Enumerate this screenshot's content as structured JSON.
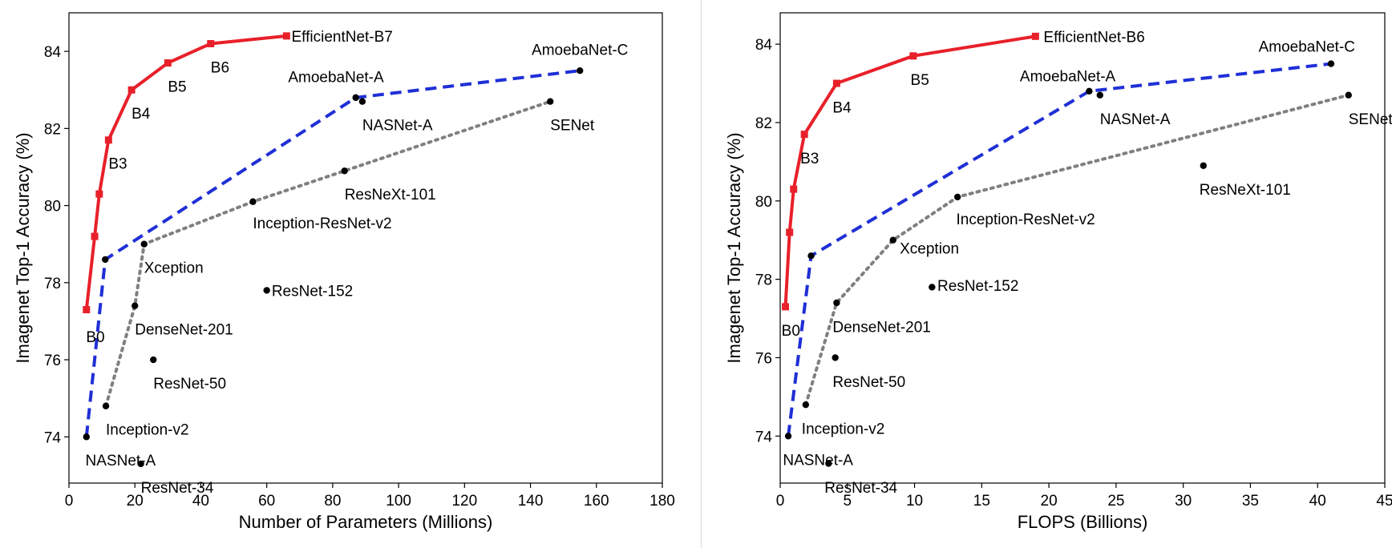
{
  "chart_data": [
    {
      "type": "scatter",
      "xlabel": "Number of Parameters (Millions)",
      "ylabel": "Imagenet Top-1 Accuracy (%)",
      "xlim": [
        0,
        180
      ],
      "ylim": [
        72.8,
        85.0
      ],
      "xticks": [
        0,
        20,
        40,
        60,
        80,
        100,
        120,
        140,
        160,
        180
      ],
      "yticks": [
        74,
        76,
        78,
        80,
        82,
        84
      ],
      "grid": false,
      "lines": [
        {
          "style": "solid",
          "color": "#e8202a",
          "marker": "square",
          "points": [
            [
              5.3,
              77.3
            ],
            [
              7.8,
              79.2
            ],
            [
              9.2,
              80.3
            ],
            [
              12,
              81.7
            ],
            [
              19,
              83.0
            ],
            [
              30,
              83.7
            ],
            [
              43,
              84.2
            ],
            [
              66,
              84.4
            ]
          ]
        },
        {
          "style": "dashed",
          "color": "#1f2fd6",
          "points": [
            [
              5.3,
              74.0
            ],
            [
              11,
              78.6
            ],
            [
              87,
              82.8
            ],
            [
              155,
              83.5
            ]
          ]
        },
        {
          "style": "dotted",
          "color": "#808080",
          "points": [
            [
              11.2,
              74.8
            ],
            [
              20,
              77.4
            ],
            [
              22.8,
              79.0
            ],
            [
              55.8,
              80.1
            ],
            [
              83.6,
              80.9
            ],
            [
              146,
              82.7
            ]
          ]
        }
      ],
      "markers": [
        {
          "x": 5.3,
          "y": 77.3,
          "shape": "square",
          "color": "#e8202a",
          "label": "B0",
          "lx": 5.2,
          "ly": 76.6,
          "anchor": "start"
        },
        {
          "x": 7.8,
          "y": 79.2,
          "shape": "square",
          "color": "#e8202a"
        },
        {
          "x": 9.2,
          "y": 80.3,
          "shape": "square",
          "color": "#e8202a"
        },
        {
          "x": 12,
          "y": 81.7,
          "shape": "square",
          "color": "#e8202a",
          "label": "B3",
          "lx": 12,
          "ly": 81.1,
          "anchor": "start"
        },
        {
          "x": 19,
          "y": 83.0,
          "shape": "square",
          "color": "#e8202a",
          "label": "B4",
          "lx": 19,
          "ly": 82.4,
          "anchor": "start"
        },
        {
          "x": 30,
          "y": 83.7,
          "shape": "square",
          "color": "#e8202a",
          "label": "B5",
          "lx": 30,
          "ly": 83.1,
          "anchor": "start"
        },
        {
          "x": 43,
          "y": 84.2,
          "shape": "square",
          "color": "#e8202a",
          "label": "B6",
          "lx": 43,
          "ly": 83.6,
          "anchor": "start"
        },
        {
          "x": 66,
          "y": 84.4,
          "shape": "square",
          "color": "#e8202a",
          "label": "EfficientNet-B7",
          "lx": 67.5,
          "ly": 84.4,
          "anchor": "start"
        },
        {
          "x": 5.3,
          "y": 74.0,
          "shape": "dot",
          "color": "#000000",
          "label": "NASNet-A",
          "lx": 5,
          "ly": 73.4,
          "anchor": "start"
        },
        {
          "x": 11,
          "y": 78.6,
          "shape": "dot",
          "color": "#000000"
        },
        {
          "x": 87,
          "y": 82.8,
          "shape": "dot",
          "color": "#000000",
          "label": "AmoebaNet-A",
          "lx": 81,
          "ly": 83.35,
          "anchor": "middle"
        },
        {
          "x": 89,
          "y": 82.7,
          "shape": "dot",
          "color": "#000000",
          "label": "NASNet-A",
          "lx": 89,
          "ly": 82.1,
          "anchor": "start"
        },
        {
          "x": 155,
          "y": 83.5,
          "shape": "dot",
          "color": "#000000",
          "label": "AmoebaNet-C",
          "lx": 155,
          "ly": 84.05,
          "anchor": "middle"
        },
        {
          "x": 146,
          "y": 82.7,
          "shape": "dot",
          "color": "#000000",
          "label": "SENet",
          "lx": 146,
          "ly": 82.1,
          "anchor": "start"
        },
        {
          "x": 83.6,
          "y": 80.9,
          "shape": "dot",
          "color": "#000000",
          "label": "ResNeXt-101",
          "lx": 83.6,
          "ly": 80.3,
          "anchor": "start"
        },
        {
          "x": 55.8,
          "y": 80.1,
          "shape": "dot",
          "color": "#000000",
          "label": "Inception-ResNet-v2",
          "lx": 55.8,
          "ly": 79.55,
          "anchor": "start"
        },
        {
          "x": 22.8,
          "y": 79.0,
          "shape": "dot",
          "color": "#000000",
          "label": "Xception",
          "lx": 22.8,
          "ly": 78.4,
          "anchor": "start"
        },
        {
          "x": 20,
          "y": 77.4,
          "shape": "dot",
          "color": "#000000",
          "label": "DenseNet-201",
          "lx": 20,
          "ly": 76.8,
          "anchor": "start"
        },
        {
          "x": 60,
          "y": 77.8,
          "shape": "dot",
          "color": "#000000",
          "label": "ResNet-152",
          "lx": 61.5,
          "ly": 77.8,
          "anchor": "start"
        },
        {
          "x": 25.6,
          "y": 76.0,
          "shape": "dot",
          "color": "#000000",
          "label": "ResNet-50",
          "lx": 25.6,
          "ly": 75.4,
          "anchor": "start"
        },
        {
          "x": 11.2,
          "y": 74.8,
          "shape": "dot",
          "color": "#000000",
          "label": "Inception-v2",
          "lx": 11.2,
          "ly": 74.2,
          "anchor": "start"
        },
        {
          "x": 21.8,
          "y": 73.3,
          "shape": "dot",
          "color": "#000000",
          "label": "ResNet-34",
          "lx": 21.8,
          "ly": 72.7,
          "anchor": "start"
        }
      ]
    },
    {
      "type": "scatter",
      "xlabel": "FLOPS (Billions)",
      "ylabel": "Imagenet Top-1 Accuracy (%)",
      "xlim": [
        0,
        45
      ],
      "ylim": [
        72.8,
        84.8
      ],
      "xticks": [
        0,
        5,
        10,
        15,
        20,
        25,
        30,
        35,
        40,
        45
      ],
      "yticks": [
        74,
        76,
        78,
        80,
        82,
        84
      ],
      "grid": false,
      "lines": [
        {
          "style": "solid",
          "color": "#e8202a",
          "marker": "square",
          "points": [
            [
              0.39,
              77.3
            ],
            [
              0.7,
              79.2
            ],
            [
              1.0,
              80.3
            ],
            [
              1.8,
              81.7
            ],
            [
              4.2,
              83.0
            ],
            [
              9.9,
              83.7
            ],
            [
              19,
              84.2
            ]
          ]
        },
        {
          "style": "dashed",
          "color": "#1f2fd6",
          "points": [
            [
              0.6,
              74.0
            ],
            [
              2.3,
              78.6
            ],
            [
              23,
              82.8
            ],
            [
              41,
              83.5
            ]
          ]
        },
        {
          "style": "dotted",
          "color": "#808080",
          "points": [
            [
              1.9,
              74.8
            ],
            [
              4.2,
              77.4
            ],
            [
              8.4,
              79.0
            ],
            [
              13.2,
              80.1
            ],
            [
              42.3,
              82.7
            ]
          ]
        }
      ],
      "markers": [
        {
          "x": 0.39,
          "y": 77.3,
          "shape": "square",
          "color": "#e8202a",
          "label": "B0",
          "lx": 0.1,
          "ly": 76.7,
          "anchor": "start"
        },
        {
          "x": 0.7,
          "y": 79.2,
          "shape": "square",
          "color": "#e8202a"
        },
        {
          "x": 1.0,
          "y": 80.3,
          "shape": "square",
          "color": "#e8202a"
        },
        {
          "x": 1.8,
          "y": 81.7,
          "shape": "square",
          "color": "#e8202a",
          "label": "B3",
          "lx": 1.5,
          "ly": 81.1,
          "anchor": "start"
        },
        {
          "x": 4.2,
          "y": 83.0,
          "shape": "square",
          "color": "#e8202a",
          "label": "B4",
          "lx": 3.9,
          "ly": 82.4,
          "anchor": "start"
        },
        {
          "x": 9.9,
          "y": 83.7,
          "shape": "square",
          "color": "#e8202a",
          "label": "B5",
          "lx": 9.7,
          "ly": 83.1,
          "anchor": "start"
        },
        {
          "x": 19,
          "y": 84.2,
          "shape": "square",
          "color": "#e8202a",
          "label": "EfficientNet-B6",
          "lx": 19.6,
          "ly": 84.2,
          "anchor": "start"
        },
        {
          "x": 0.6,
          "y": 74.0,
          "shape": "dot",
          "color": "#000000",
          "label": "NASNet-A",
          "lx": 0.2,
          "ly": 73.4,
          "anchor": "start"
        },
        {
          "x": 2.3,
          "y": 78.6,
          "shape": "dot",
          "color": "#000000"
        },
        {
          "x": 23,
          "y": 82.8,
          "shape": "dot",
          "color": "#000000",
          "label": "AmoebaNet-A",
          "lx": 21.4,
          "ly": 83.2,
          "anchor": "middle"
        },
        {
          "x": 23.8,
          "y": 82.7,
          "shape": "dot",
          "color": "#000000",
          "label": "NASNet-A",
          "lx": 23.8,
          "ly": 82.1,
          "anchor": "start"
        },
        {
          "x": 41,
          "y": 83.5,
          "shape": "dot",
          "color": "#000000",
          "label": "AmoebaNet-C",
          "lx": 39.2,
          "ly": 83.95,
          "anchor": "middle"
        },
        {
          "x": 42.3,
          "y": 82.7,
          "shape": "dot",
          "color": "#000000",
          "label": "SENet",
          "lx": 42.3,
          "ly": 82.1,
          "anchor": "start"
        },
        {
          "x": 31.5,
          "y": 80.9,
          "shape": "dot",
          "color": "#000000",
          "label": "ResNeXt-101",
          "lx": 31.2,
          "ly": 80.3,
          "anchor": "start"
        },
        {
          "x": 13.2,
          "y": 80.1,
          "shape": "dot",
          "color": "#000000",
          "label": "Inception-ResNet-v2",
          "lx": 13.1,
          "ly": 79.55,
          "anchor": "start"
        },
        {
          "x": 8.4,
          "y": 79.0,
          "shape": "dot",
          "color": "#000000",
          "label": "Xception",
          "lx": 8.9,
          "ly": 78.8,
          "anchor": "start"
        },
        {
          "x": 4.2,
          "y": 77.4,
          "shape": "dot",
          "color": "#000000",
          "label": "DenseNet-201",
          "lx": 3.9,
          "ly": 76.8,
          "anchor": "start"
        },
        {
          "x": 11.3,
          "y": 77.8,
          "shape": "dot",
          "color": "#000000",
          "label": "ResNet-152",
          "lx": 11.7,
          "ly": 77.85,
          "anchor": "start"
        },
        {
          "x": 4.1,
          "y": 76.0,
          "shape": "dot",
          "color": "#000000",
          "label": "ResNet-50",
          "lx": 3.9,
          "ly": 75.4,
          "anchor": "start"
        },
        {
          "x": 1.9,
          "y": 74.8,
          "shape": "dot",
          "color": "#000000",
          "label": "Inception-v2",
          "lx": 1.6,
          "ly": 74.2,
          "anchor": "start"
        },
        {
          "x": 3.6,
          "y": 73.3,
          "shape": "dot",
          "color": "#000000",
          "label": "ResNet-34",
          "lx": 3.3,
          "ly": 72.7,
          "anchor": "start"
        }
      ]
    }
  ]
}
